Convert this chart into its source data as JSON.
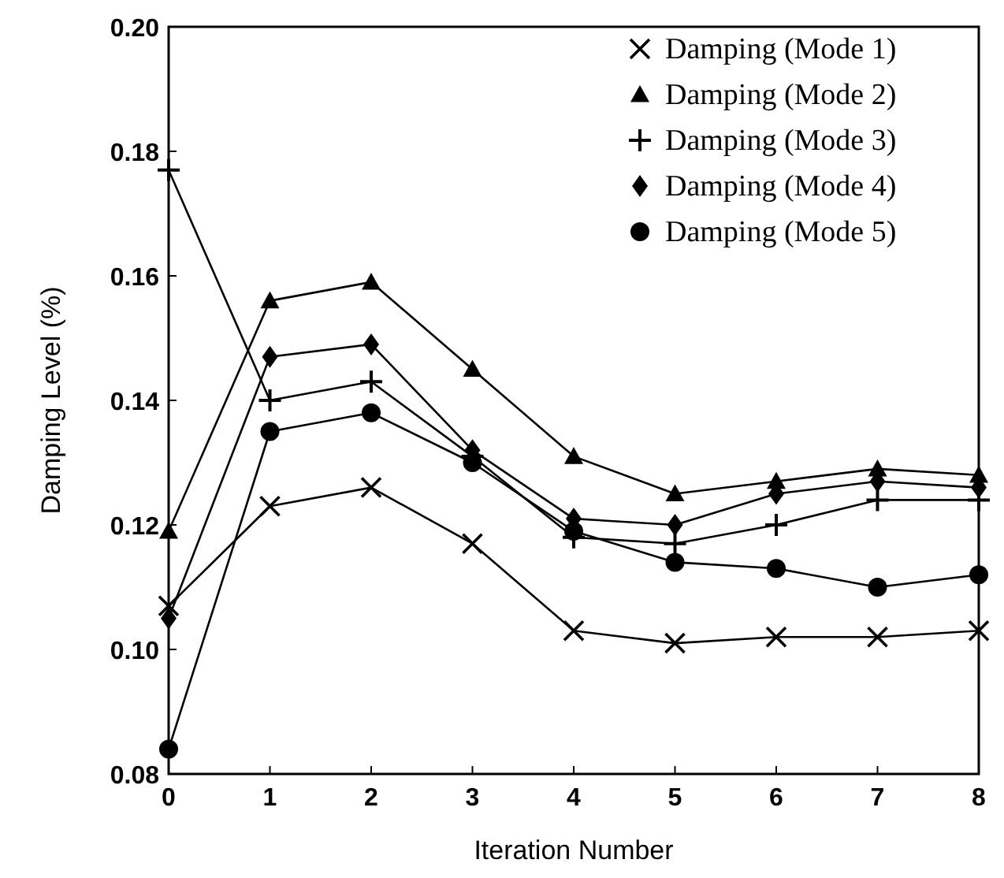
{
  "chart_data": {
    "type": "line",
    "xlabel": "Iteration Number",
    "ylabel": "Damping Level (%)",
    "x": [
      0,
      1,
      2,
      3,
      4,
      5,
      6,
      7,
      8
    ],
    "xlim": [
      0,
      8
    ],
    "xticks": [
      0,
      1,
      2,
      3,
      4,
      5,
      6,
      7,
      8
    ],
    "ylim": [
      0.08,
      0.2
    ],
    "yticks": [
      0.08,
      {
        "value": 0.1,
        "label": "0.10"
      },
      0.12,
      0.14,
      0.16,
      0.18,
      {
        "value": 0.2,
        "label": "0.20"
      }
    ],
    "grid": false,
    "legend": "top right",
    "line_style": "solid",
    "series": [
      {
        "name": "Damping (Mode 1)",
        "color": "#000000",
        "marker": "cross",
        "values": [
          0.107,
          0.123,
          0.126,
          0.117,
          0.103,
          0.101,
          0.102,
          0.102,
          0.103
        ]
      },
      {
        "name": "Damping (Mode 2)",
        "color": "#000000",
        "marker": "triangle",
        "values": [
          0.119,
          0.156,
          0.159,
          0.145,
          0.131,
          0.125,
          0.127,
          0.129,
          0.128
        ]
      },
      {
        "name": "Damping (Mode 3)",
        "color": "#000000",
        "marker": "plus",
        "values": [
          0.177,
          0.14,
          0.143,
          0.131,
          0.118,
          0.117,
          0.12,
          0.124,
          0.124
        ]
      },
      {
        "name": "Damping (Mode 4)",
        "color": "#000000",
        "marker": "diamond",
        "values": [
          0.105,
          0.147,
          0.149,
          0.132,
          0.121,
          0.12,
          0.125,
          0.127,
          0.126
        ]
      },
      {
        "name": "Damping (Mode 5)",
        "color": "#000000",
        "marker": "circle",
        "values": [
          0.084,
          0.135,
          0.138,
          0.13,
          0.119,
          0.114,
          0.113,
          0.11,
          0.112
        ]
      }
    ]
  }
}
